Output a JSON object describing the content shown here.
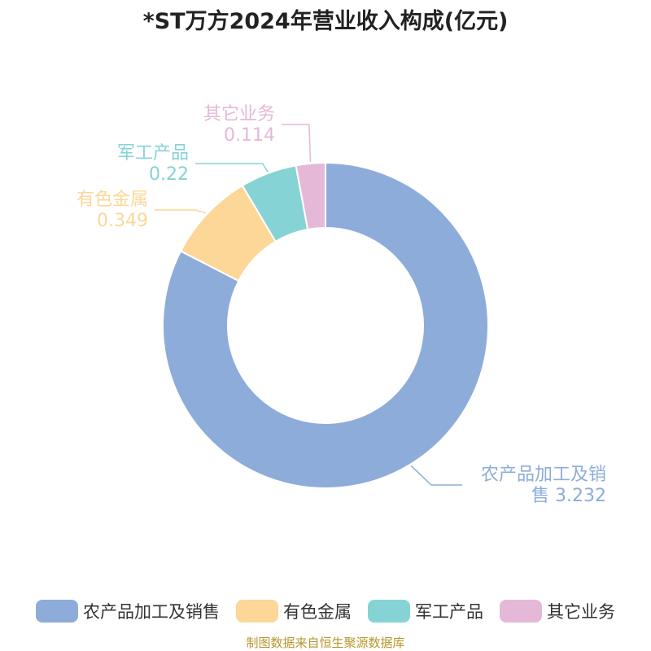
{
  "title": "*ST万方2024年营业收入构成(亿元)",
  "source": "制图数据来自恒生聚源数据库",
  "chart_data": {
    "type": "pie",
    "title": "*ST万方2024年营业收入构成(亿元)",
    "unit": "亿元",
    "slices": [
      {
        "label": "农产品加工及销售",
        "label_lines": [
          "农产品加工及销",
          "售 3.232"
        ],
        "value": 3.232,
        "color": "#8eacd9"
      },
      {
        "label": "有色金属",
        "label_lines": [
          "有色金属",
          "0.349"
        ],
        "value": 0.349,
        "color": "#fcd798"
      },
      {
        "label": "军工产品",
        "label_lines": [
          "军工产品",
          "0.22"
        ],
        "value": 0.22,
        "color": "#86d3d5"
      },
      {
        "label": "其它业务",
        "label_lines": [
          "其它业务",
          "0.114"
        ],
        "value": 0.114,
        "color": "#e5b8d8"
      }
    ],
    "legend_position": "bottom"
  }
}
